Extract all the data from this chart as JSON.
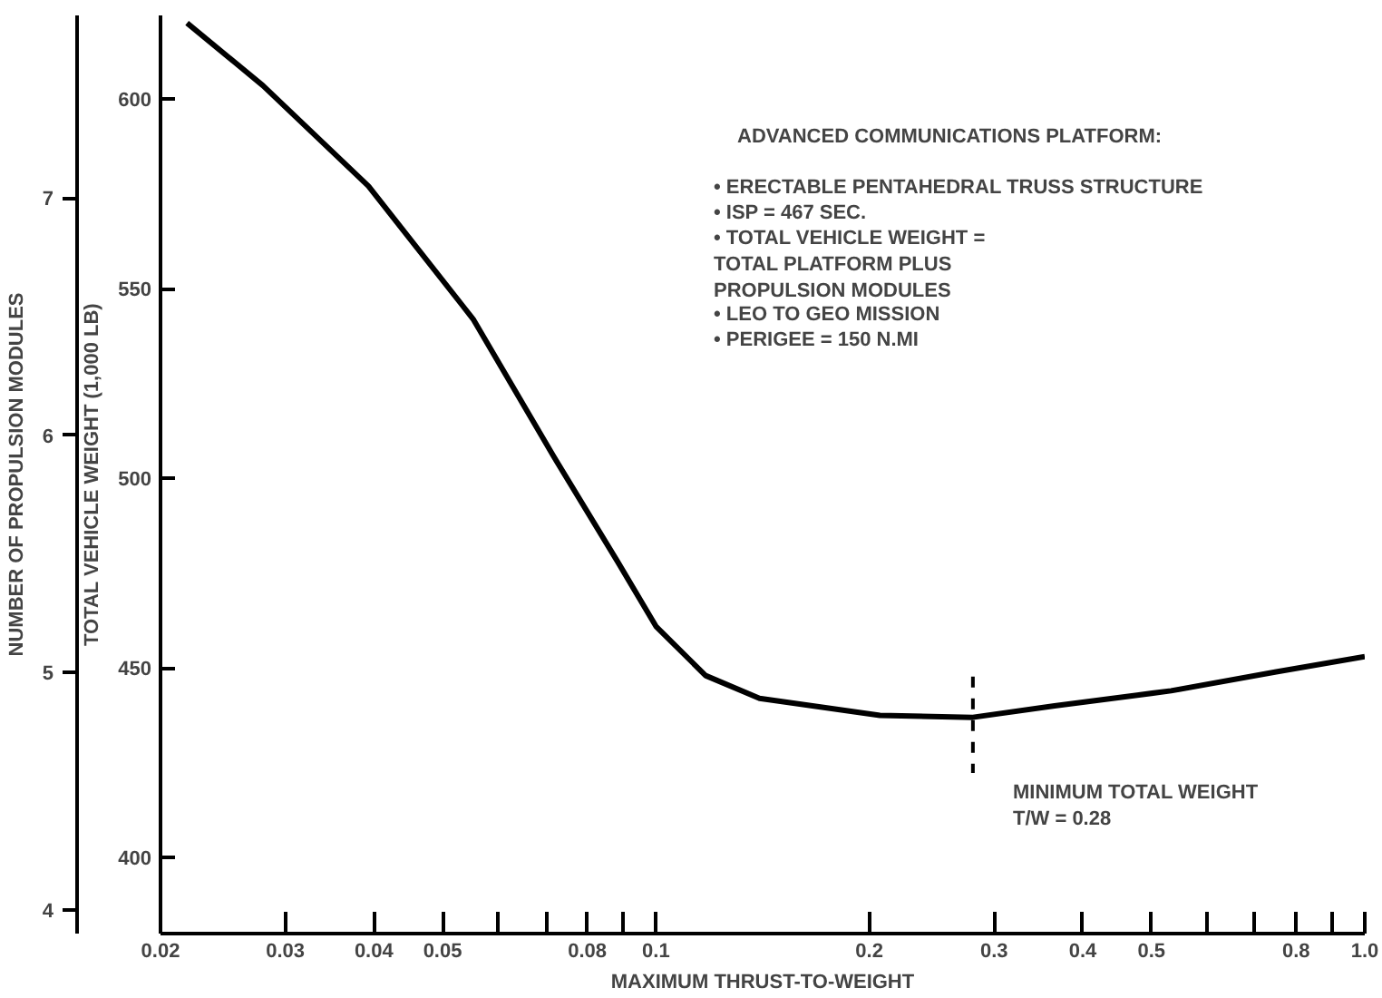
{
  "chart_data": {
    "type": "line",
    "xlabel": "MAXIMUM THRUST-TO-WEIGHT",
    "ylabel": "TOTAL VEHICLE WEIGHT (1,000 LB)",
    "y2label": "NUMBER OF PROPULSION MODULES",
    "log": "x",
    "x": [
      0.0218,
      0.0279,
      0.0393,
      0.0552,
      0.0716,
      0.0883,
      0.1,
      0.1175,
      0.14,
      0.207,
      0.28,
      0.365,
      0.533,
      0.75,
      1.0
    ],
    "series": [
      {
        "color": "#000000",
        "values": [
          620,
          603.5,
          577,
          542,
          506,
          478,
          461,
          448,
          442,
          437.5,
          437,
          440,
          444,
          449,
          453
        ]
      }
    ],
    "xlim": [
      0.02,
      1.0
    ],
    "xticks": [
      0.02,
      0.03,
      0.04,
      0.05,
      {
        "value": 0.06,
        "label": null
      },
      {
        "value": 0.07,
        "label": null
      },
      0.08,
      0.1,
      {
        "value": 0.09,
        "label": null
      },
      0.2,
      0.3,
      0.4,
      0.5,
      {
        "value": 0.6,
        "label": null
      },
      {
        "value": 0.7,
        "label": null
      },
      0.8,
      {
        "value": 0.9,
        "label": null
      },
      {
        "value": 1.0,
        "label": "1.0"
      }
    ],
    "ylim": [
      380,
      622
    ],
    "yticks": [
      400,
      450,
      500,
      550,
      600
    ],
    "y2lim": [
      3.9,
      7.77
    ],
    "y2ticks": [
      4,
      5,
      6,
      7
    ],
    "grid": false,
    "ref_lines": [
      {
        "axis": "x",
        "value": 0.28,
        "line_style": "dashed"
      }
    ],
    "marker": "none",
    "line_style": "solid",
    "annotations": [
      "ADVANCED COMMUNICATIONS PLATFORM:",
      "• ERECTABLE PENTAHEDRAL TRUSS STRUCTURE",
      "• ISP = 467 SEC.",
      "• TOTAL VEHICLE WEIGHT =\n   TOTAL PLATFORM PLUS\n   PROPULSION MODULES",
      "• LEO TO GEO MISSION",
      "• PERIGEE = 150 N.MI",
      "MINIMUM TOTAL WEIGHT\nT/W = 0.28"
    ]
  }
}
